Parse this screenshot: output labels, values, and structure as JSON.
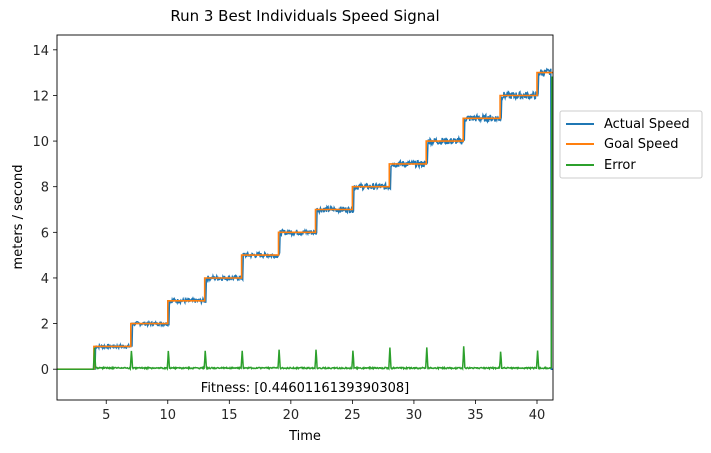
{
  "chart_data": {
    "type": "line",
    "title": "Run 3 Best Individuals Speed Signal",
    "xlabel": "Time",
    "ylabel": "meters / second",
    "xlim": [
      1,
      41.3
    ],
    "ylim": [
      -1.35,
      14.65
    ],
    "xticks": [
      5,
      10,
      15,
      20,
      25,
      30,
      35,
      40
    ],
    "yticks": [
      0,
      2,
      4,
      6,
      8,
      10,
      12,
      14
    ],
    "legend_position": "outside-right",
    "annotation": "Fitness: [0.4460116139390308]",
    "series": [
      {
        "name": "Actual Speed",
        "color": "#1f77b4",
        "steps": [
          {
            "t": 1,
            "v": 0
          },
          {
            "t": 4.1,
            "v": 1
          },
          {
            "t": 7.1,
            "v": 2
          },
          {
            "t": 10.1,
            "v": 3
          },
          {
            "t": 13.1,
            "v": 4
          },
          {
            "t": 16.1,
            "v": 5
          },
          {
            "t": 19.1,
            "v": 6
          },
          {
            "t": 22.1,
            "v": 7
          },
          {
            "t": 25.1,
            "v": 8
          },
          {
            "t": 28.1,
            "v": 9
          },
          {
            "t": 31.1,
            "v": 10
          },
          {
            "t": 34.1,
            "v": 11
          },
          {
            "t": 37.1,
            "v": 12
          },
          {
            "t": 40.1,
            "v": 13
          },
          {
            "t": 41.3,
            "v": 0
          }
        ],
        "noise": 0.15
      },
      {
        "name": "Goal Speed",
        "color": "#ff7f0e",
        "steps": [
          {
            "t": 1,
            "v": 0
          },
          {
            "t": 4.0,
            "v": 1
          },
          {
            "t": 7.0,
            "v": 2
          },
          {
            "t": 10.0,
            "v": 3
          },
          {
            "t": 13.0,
            "v": 4
          },
          {
            "t": 16.0,
            "v": 5
          },
          {
            "t": 19.0,
            "v": 6
          },
          {
            "t": 22.0,
            "v": 7
          },
          {
            "t": 25.0,
            "v": 8
          },
          {
            "t": 28.0,
            "v": 9
          },
          {
            "t": 31.0,
            "v": 10
          },
          {
            "t": 34.0,
            "v": 11
          },
          {
            "t": 37.0,
            "v": 12
          },
          {
            "t": 40.0,
            "v": 13
          },
          {
            "t": 41.3,
            "v": 13
          }
        ]
      },
      {
        "name": "Error",
        "color": "#2ca02c",
        "spikes": [
          {
            "t": 4.05,
            "v": 1.0
          },
          {
            "t": 7.05,
            "v": 0.85
          },
          {
            "t": 10.05,
            "v": 0.85
          },
          {
            "t": 13.05,
            "v": 0.85
          },
          {
            "t": 16.05,
            "v": 0.85
          },
          {
            "t": 19.05,
            "v": 0.9
          },
          {
            "t": 22.05,
            "v": 0.9
          },
          {
            "t": 25.05,
            "v": 0.85
          },
          {
            "t": 28.05,
            "v": 1.0
          },
          {
            "t": 31.05,
            "v": 1.0
          },
          {
            "t": 34.05,
            "v": 1.05
          },
          {
            "t": 37.05,
            "v": 0.8
          },
          {
            "t": 40.05,
            "v": 0.85
          },
          {
            "t": 41.2,
            "v": 12.8
          }
        ],
        "noise": 0.12
      }
    ]
  }
}
